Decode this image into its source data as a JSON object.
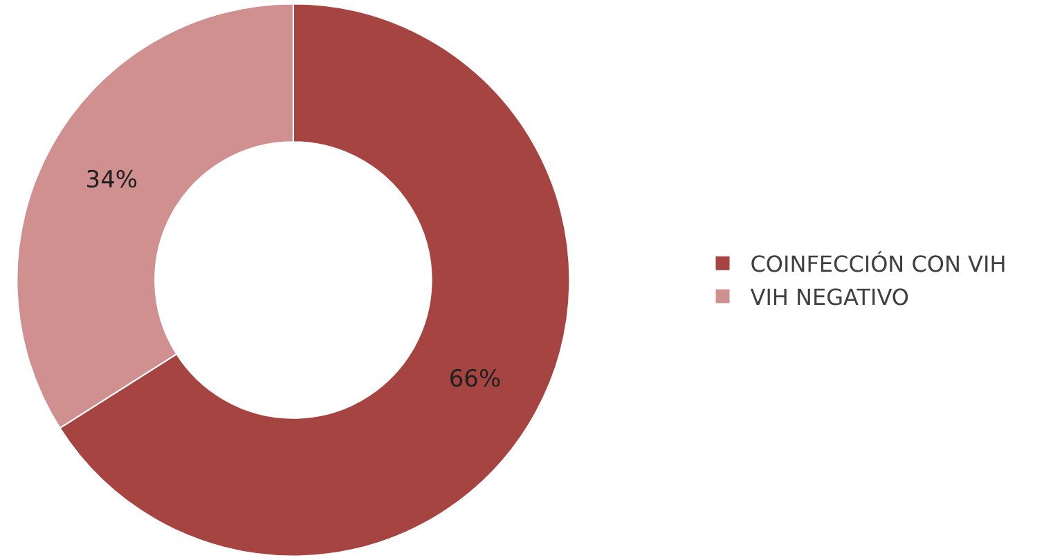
{
  "chart_data": {
    "type": "donut",
    "categories": [
      "COINFECCIÓN CON VIH",
      "VIH NEGATIVO"
    ],
    "values": [
      66,
      34
    ],
    "colors": [
      "#a64442",
      "#d09090"
    ],
    "value_labels": [
      "66%",
      "34%"
    ],
    "legend": "right"
  }
}
